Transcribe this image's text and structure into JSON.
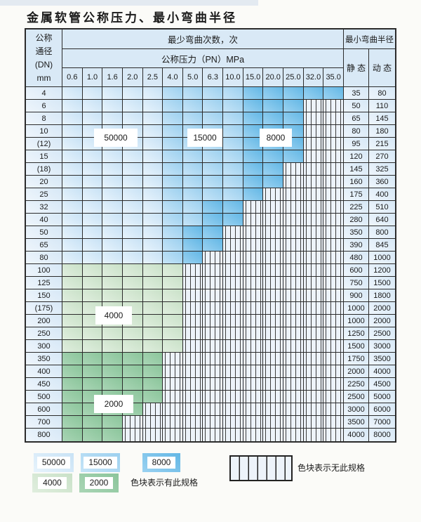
{
  "title": "金属软管公称压力、最小弯曲半径",
  "table": {
    "dn_header": [
      "公称",
      "通径",
      "(DN)",
      "mm"
    ],
    "bend_cycles_header": "最少弯曲次数，次",
    "pressure_header": "公称压力（PN）MPa",
    "radius_header": "最小弯曲半径",
    "static_header": "静 态",
    "dynamic_header": "动 态",
    "pressures": [
      "0.6",
      "1.0",
      "1.6",
      "2.0",
      "2.5",
      "4.0",
      "5.0",
      "6.3",
      "10.0",
      "15.0",
      "20.0",
      "25.0",
      "32.0",
      "35.0"
    ],
    "band_legend": {
      "L": "50000",
      "M": "15000",
      "D": "8000",
      "G": "4000",
      "K": "2000",
      "H": "无此规格"
    },
    "rows": [
      {
        "dn": "4",
        "bands": "LLLLLMMMMDDDDD",
        "static": "35",
        "dynamic": "80"
      },
      {
        "dn": "6",
        "bands": "LLLLLMMMMDDDHH",
        "static": "50",
        "dynamic": "110"
      },
      {
        "dn": "8",
        "bands": "LLLLLMMMMDDDHH",
        "static": "65",
        "dynamic": "145"
      },
      {
        "dn": "10",
        "bands": "LLLLLMMMMDDDHH",
        "static": "80",
        "dynamic": "180"
      },
      {
        "dn": "(12)",
        "bands": "LLLLLMMMMDDDHH",
        "static": "95",
        "dynamic": "215"
      },
      {
        "dn": "15",
        "bands": "LLLLLMMMMDDDHH",
        "static": "120",
        "dynamic": "270"
      },
      {
        "dn": "(18)",
        "bands": "LLLLLMMMMDDHHH",
        "static": "145",
        "dynamic": "325"
      },
      {
        "dn": "20",
        "bands": "LLLLLMMMMDDHHH",
        "static": "160",
        "dynamic": "360"
      },
      {
        "dn": "25",
        "bands": "LLLLLMMMMDHHHH",
        "static": "175",
        "dynamic": "400"
      },
      {
        "dn": "32",
        "bands": "LLLLLMMDDHHHHH",
        "static": "225",
        "dynamic": "510"
      },
      {
        "dn": "40",
        "bands": "LLLLLMMDDHHHHH",
        "static": "280",
        "dynamic": "640"
      },
      {
        "dn": "50",
        "bands": "LLLLLMDDHHHHHH",
        "static": "350",
        "dynamic": "800"
      },
      {
        "dn": "65",
        "bands": "LLLLLMDDHHHHHH",
        "static": "390",
        "dynamic": "845"
      },
      {
        "dn": "80",
        "bands": "LLLLLMDHHHHHHH",
        "static": "480",
        "dynamic": "1000"
      },
      {
        "dn": "100",
        "bands": "GGGGGGHHHHHHHH",
        "static": "600",
        "dynamic": "1200"
      },
      {
        "dn": "125",
        "bands": "GGGGGGHHHHHHHH",
        "static": "750",
        "dynamic": "1500"
      },
      {
        "dn": "150",
        "bands": "GGGGGGHHHHHHHH",
        "static": "900",
        "dynamic": "1800"
      },
      {
        "dn": "(175)",
        "bands": "GGGGGGHHHHHHHH",
        "static": "1000",
        "dynamic": "2000"
      },
      {
        "dn": "200",
        "bands": "GGGGGGHHHHHHHH",
        "static": "1000",
        "dynamic": "2000"
      },
      {
        "dn": "250",
        "bands": "GGGGGGHHHHHHHH",
        "static": "1250",
        "dynamic": "2500"
      },
      {
        "dn": "300",
        "bands": "GGGGGGHHHHHHHH",
        "static": "1500",
        "dynamic": "3000"
      },
      {
        "dn": "350",
        "bands": "KKKKKHHHHHHHHH",
        "static": "1750",
        "dynamic": "3500"
      },
      {
        "dn": "400",
        "bands": "KKKKKHHHHHHHHH",
        "static": "2000",
        "dynamic": "4000"
      },
      {
        "dn": "450",
        "bands": "KKKKKHHHHHHHHH",
        "static": "2250",
        "dynamic": "4500"
      },
      {
        "dn": "500",
        "bands": "KKKKKHHHHHHHHH",
        "static": "2500",
        "dynamic": "5000"
      },
      {
        "dn": "600",
        "bands": "KKKKHHHHHHHHHH",
        "static": "3000",
        "dynamic": "6000"
      },
      {
        "dn": "700",
        "bands": "KKKHHHHHHHHHHH",
        "static": "3500",
        "dynamic": "7000"
      },
      {
        "dn": "800",
        "bands": "KKKHHHHHHHHHHH",
        "static": "4000",
        "dynamic": "8000"
      }
    ]
  },
  "zone_labels": [
    {
      "text": "50000"
    },
    {
      "text": "15000"
    },
    {
      "text": "8000"
    },
    {
      "text": "4000"
    },
    {
      "text": "2000"
    }
  ],
  "legend": {
    "items": [
      {
        "value": "50000",
        "band": "L"
      },
      {
        "value": "15000",
        "band": "M"
      },
      {
        "value": "8000",
        "band": "D"
      },
      {
        "value": "4000",
        "band": "G"
      },
      {
        "value": "2000",
        "band": "K"
      }
    ],
    "has_spec_text": "色块表示有此规格",
    "no_spec_text": "色块表示无此规格"
  },
  "colors": {
    "bands": {
      "L": [
        "#c8e2f5",
        "#e7f3fc"
      ],
      "M": [
        "#9cd0ef",
        "#c6e4f7"
      ],
      "D": [
        "#63b7e5",
        "#9bd2f1"
      ],
      "G": [
        "#c9e1c8",
        "#e0eede"
      ],
      "K": [
        "#8bc59b",
        "#a9d5b5"
      ]
    },
    "hatch_bg": "#edf3fa",
    "grid_line": "#2b2b2b",
    "header_bg": "#d9e9f6",
    "label_col_bg": [
      "#d7e8f6",
      "#eef5fc"
    ],
    "top_strip": "#e3eaf1"
  }
}
